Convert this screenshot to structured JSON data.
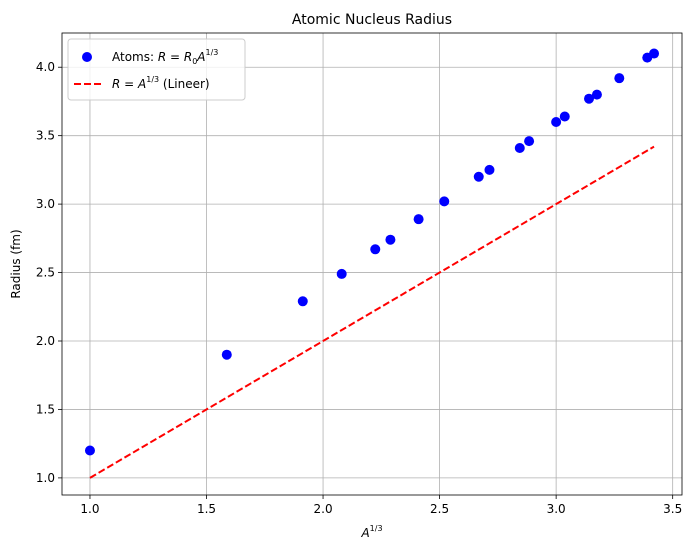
{
  "chart_data": {
    "type": "scatter",
    "title": "Atomic Nucleus Radius",
    "xlabel": {
      "base": "A",
      "sup": "1/3"
    },
    "ylabel": "Radius (fm)",
    "xlim": [
      0.88,
      3.54
    ],
    "ylim": [
      0.875,
      4.25
    ],
    "xticks": [
      1.0,
      1.5,
      2.0,
      2.5,
      3.0,
      3.5
    ],
    "yticks": [
      1.0,
      1.5,
      2.0,
      2.5,
      3.0,
      3.5,
      4.0
    ],
    "xtick_labels": [
      "1.0",
      "1.5",
      "2.0",
      "2.5",
      "3.0",
      "3.5"
    ],
    "ytick_labels": [
      "1.0",
      "1.5",
      "2.0",
      "2.5",
      "3.0",
      "3.5",
      "4.0"
    ],
    "grid": true,
    "legend": "top-left",
    "series": [
      {
        "name": {
          "prefix": "Atoms: ",
          "formula": "R = R",
          "sub": "0",
          "mid": "A",
          "sup": "1/3"
        },
        "kind": "scatter",
        "color": "#0000ff",
        "x": [
          1.0,
          1.587,
          1.913,
          2.08,
          2.224,
          2.289,
          2.41,
          2.52,
          2.668,
          2.714,
          2.844,
          2.884,
          3.0,
          3.037,
          3.141,
          3.175,
          3.271,
          3.391,
          3.42
        ],
        "y": [
          1.2,
          1.9,
          2.29,
          2.49,
          2.67,
          2.74,
          2.89,
          3.02,
          3.2,
          3.25,
          3.41,
          3.46,
          3.6,
          3.64,
          3.77,
          3.8,
          3.92,
          4.07,
          4.1
        ]
      },
      {
        "name": {
          "formula": "R = A",
          "sup": "1/3",
          "suffix": " (Lineer)"
        },
        "kind": "line",
        "style": "dashed",
        "color": "#ff0000",
        "x": [
          1.0,
          3.42
        ],
        "y": [
          1.0,
          3.42
        ]
      }
    ]
  }
}
